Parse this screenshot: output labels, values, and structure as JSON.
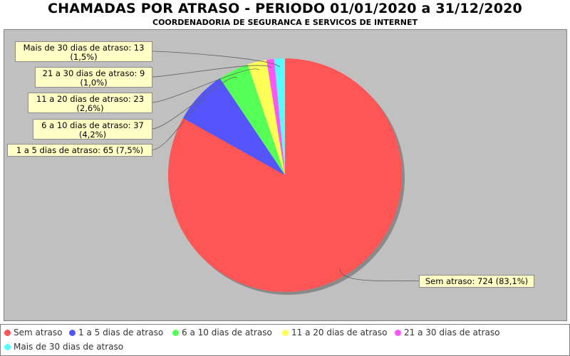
{
  "chart_data": {
    "type": "pie",
    "title": "CHAMADAS POR ATRASO - PERIODO 01/01/2020 a 31/12/2020",
    "subtitle": "COORDENADORIA DE SEGURANCA E SERVICOS DE INTERNET",
    "slices": [
      {
        "name": "Sem atraso",
        "value": 724,
        "percent": "83,1%",
        "color": "#ff5555",
        "label": [
          "Sem atraso: 724 (83,1%)"
        ]
      },
      {
        "name": "1 a 5 dias de atraso",
        "value": 65,
        "percent": "7,5%",
        "color": "#5555ff",
        "label": [
          "1 a 5 dias de atraso: 65 (7,5%)"
        ]
      },
      {
        "name": "6 a 10 dias de atraso",
        "value": 37,
        "percent": "4,2%",
        "color": "#55ff55",
        "label": [
          "6 a 10 dias de atraso: 37",
          "(4,2%)"
        ]
      },
      {
        "name": "11 a 20 dias de atraso",
        "value": 23,
        "percent": "2,6%",
        "color": "#ffff55",
        "label": [
          "11 a 20 dias de atraso: 23",
          "(2,6%)"
        ]
      },
      {
        "name": "21 a 30 dias de atraso",
        "value": 9,
        "percent": "1,0%",
        "color": "#ff55ff",
        "label": [
          "21 a 30 dias de atraso: 9",
          "(1,0%)"
        ]
      },
      {
        "name": "Mais de 30 dias de atraso",
        "value": 13,
        "percent": "1,5%",
        "color": "#55ffff",
        "label": [
          "Mais de 30 dias de atraso: 13",
          "(1,5%)"
        ]
      }
    ],
    "legend_position": "bottom"
  }
}
